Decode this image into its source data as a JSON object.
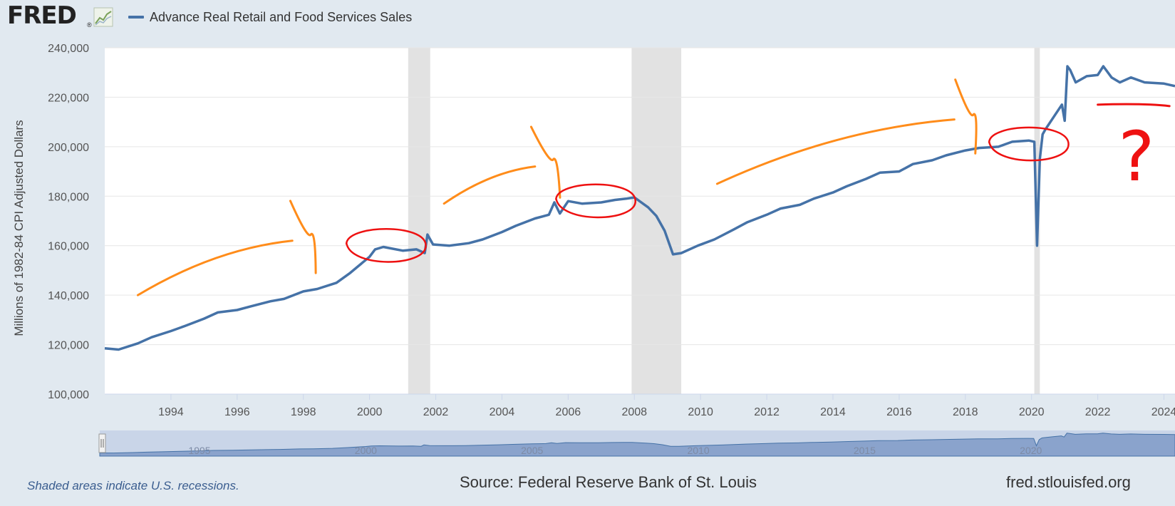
{
  "header": {
    "logo_text": "FRED",
    "logo_mark": "®",
    "logo_icon": "line-chart-icon",
    "legend_label": "Advance Real Retail and Food Services Sales"
  },
  "footer": {
    "recession_note": "Shaded areas indicate U.S. recessions.",
    "source": "Source: Federal Reserve Bank of St. Louis",
    "site": "fred.stlouisfed.org"
  },
  "navigator": {
    "labels": [
      "1995",
      "2000",
      "2005",
      "2010",
      "2015",
      "2020"
    ]
  },
  "colors": {
    "series": "#4572a7",
    "recession": "#e2e2e2",
    "annotation_orange": "#ff8c1a",
    "annotation_red": "#ee1111",
    "background": "#e1e9f0"
  },
  "annotations": [
    {
      "type": "arrow",
      "color": "orange",
      "from": [
        "1993-01",
        140000
      ],
      "to": [
        "1997-09",
        162000
      ]
    },
    {
      "type": "circle",
      "color": "red",
      "around": [
        "2000-07",
        160000
      ]
    },
    {
      "type": "arrow",
      "color": "orange",
      "from": [
        "2002-04",
        177000
      ],
      "to": [
        "2005-01",
        192000
      ]
    },
    {
      "type": "circle",
      "color": "red",
      "around": [
        "2006-11",
        178000
      ]
    },
    {
      "type": "arrow",
      "color": "orange",
      "from": [
        "2010-07",
        185000
      ],
      "to": [
        "2017-09",
        211000
      ]
    },
    {
      "type": "circle",
      "color": "red",
      "around": [
        "2019-12",
        201000
      ]
    },
    {
      "type": "text",
      "color": "red",
      "text": "?",
      "at": [
        "2023-03",
        195000
      ]
    }
  ],
  "chart_data": {
    "type": "line",
    "title": "",
    "xlabel": "",
    "ylabel": "Millions of 1982-84 CPI Adjusted Dollars",
    "y_ticks": [
      100000,
      120000,
      140000,
      160000,
      180000,
      200000,
      220000,
      240000
    ],
    "x_ticks": [
      "1994",
      "1996",
      "1998",
      "2000",
      "2002",
      "2004",
      "2006",
      "2008",
      "2010",
      "2012",
      "2014",
      "2016",
      "2018",
      "2020",
      "2022",
      "2024"
    ],
    "ylim": [
      100000,
      240000
    ],
    "xlim": [
      "1992-01",
      "2024-05"
    ],
    "grid": true,
    "legend": "top-left",
    "recessions": [
      {
        "start": "2001-03",
        "end": "2001-11"
      },
      {
        "start": "2007-12",
        "end": "2009-06"
      },
      {
        "start": "2020-02",
        "end": "2020-04"
      }
    ],
    "series": [
      {
        "name": "Advance Real Retail and Food Services Sales",
        "x": [
          "1992-01",
          "1992-06",
          "1993-01",
          "1993-06",
          "1994-01",
          "1994-06",
          "1995-01",
          "1995-06",
          "1996-01",
          "1996-06",
          "1997-01",
          "1997-06",
          "1998-01",
          "1998-06",
          "1999-01",
          "1999-06",
          "2000-01",
          "2000-03",
          "2000-06",
          "2001-01",
          "2001-06",
          "2001-09",
          "2001-10",
          "2001-12",
          "2002-06",
          "2003-01",
          "2003-06",
          "2004-01",
          "2004-06",
          "2005-01",
          "2005-06",
          "2005-08",
          "2005-10",
          "2006-01",
          "2006-06",
          "2007-01",
          "2007-06",
          "2007-10",
          "2008-01",
          "2008-06",
          "2008-09",
          "2008-12",
          "2009-03",
          "2009-06",
          "2009-12",
          "2010-06",
          "2011-01",
          "2011-06",
          "2012-01",
          "2012-06",
          "2013-01",
          "2013-06",
          "2014-01",
          "2014-06",
          "2015-01",
          "2015-06",
          "2016-01",
          "2016-06",
          "2017-01",
          "2017-06",
          "2018-01",
          "2018-06",
          "2019-01",
          "2019-06",
          "2019-12",
          "2020-02",
          "2020-03",
          "2020-04",
          "2020-05",
          "2020-06",
          "2020-09",
          "2020-12",
          "2021-01",
          "2021-02",
          "2021-03",
          "2021-05",
          "2021-09",
          "2022-01",
          "2022-03",
          "2022-06",
          "2022-09",
          "2023-01",
          "2023-06",
          "2024-01",
          "2024-05"
        ],
        "values": [
          118500,
          118000,
          120500,
          123000,
          125500,
          127500,
          130500,
          133000,
          134000,
          135500,
          137500,
          138500,
          141500,
          142500,
          145000,
          149000,
          155500,
          158500,
          159500,
          158000,
          158500,
          157000,
          164500,
          160500,
          160000,
          161000,
          162500,
          165500,
          168000,
          171000,
          172500,
          177500,
          173000,
          178000,
          177000,
          177500,
          178500,
          179000,
          179500,
          175500,
          172000,
          166000,
          156500,
          157000,
          160000,
          162500,
          166500,
          169500,
          172500,
          175000,
          176500,
          179000,
          181500,
          184000,
          187000,
          189500,
          190000,
          193000,
          194500,
          196500,
          198500,
          199500,
          200000,
          202000,
          202500,
          202000,
          160000,
          195000,
          205000,
          207000,
          212000,
          217000,
          210500,
          232500,
          231000,
          226000,
          228500,
          229000,
          232500,
          228000,
          226000,
          228000,
          226000,
          225500,
          224500
        ]
      }
    ]
  }
}
